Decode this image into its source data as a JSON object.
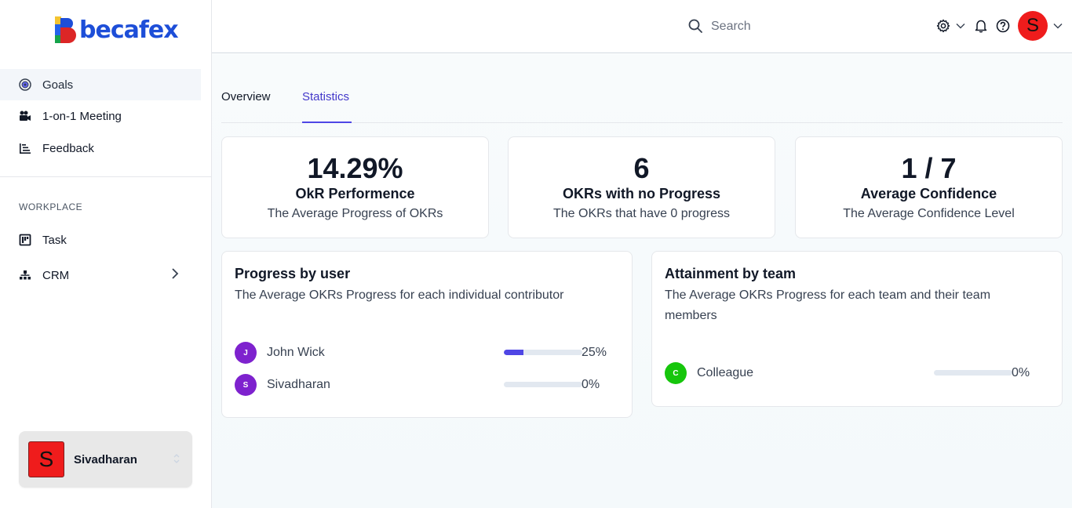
{
  "brand": {
    "name": "becafex"
  },
  "sidebar": {
    "items": [
      {
        "label": "Goals",
        "icon": "target-icon"
      },
      {
        "label": "1-on-1 Meeting",
        "icon": "video-camera-icon"
      },
      {
        "label": "Feedback",
        "icon": "list-icon"
      }
    ],
    "section_label": "WORKPLACE",
    "workplace_items": [
      {
        "label": "Task",
        "icon": "board-icon"
      },
      {
        "label": "CRM",
        "icon": "org-chart-icon"
      }
    ],
    "user": {
      "initial": "S",
      "name": "Sivadharan"
    }
  },
  "header": {
    "search_placeholder": "Search",
    "avatar_initial": "S"
  },
  "tabs": [
    {
      "label": "Overview",
      "active": false
    },
    {
      "label": "Statistics",
      "active": true
    }
  ],
  "stats": [
    {
      "value": "14.29%",
      "title": "OkR Performence",
      "subtitle": "The Average Progress of OKRs"
    },
    {
      "value": "6",
      "title": "OKRs with no Progress",
      "subtitle": "The OKRs that have 0 progress"
    },
    {
      "value": "1 / 7",
      "title": "Average Confidence",
      "subtitle": "The Average Confidence Level"
    }
  ],
  "progress_by_user": {
    "title": "Progress by user",
    "subtitle": "The Average OKRs Progress for each individual contributor",
    "rows": [
      {
        "initial": "J",
        "name": "John Wick",
        "percent_label": "25%",
        "progress": 0.25,
        "color": "#7e22ce"
      },
      {
        "initial": "S",
        "name": "Sivadharan",
        "percent_label": "0%",
        "progress": 0,
        "color": "#7e22ce"
      }
    ]
  },
  "attainment_by_team": {
    "title": "Attainment by team",
    "subtitle_line1": "The Average OKRs Progress for each team and their team",
    "subtitle_line2": "members",
    "rows": [
      {
        "initial": "C",
        "name": "Colleague",
        "percent_label": "0%",
        "progress": 0,
        "color": "#16c60c"
      }
    ]
  },
  "colors": {
    "accent": "#4f46e5",
    "avatar_red": "#ef1c1c"
  }
}
